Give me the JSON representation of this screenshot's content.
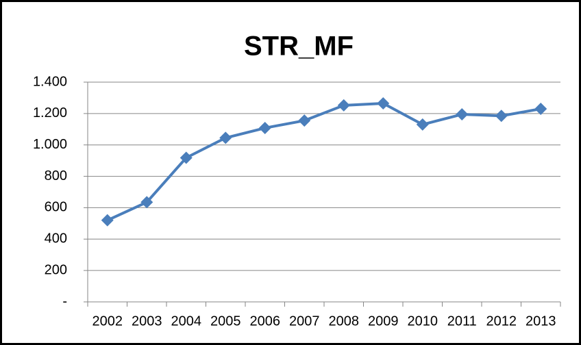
{
  "chart_data": {
    "type": "line",
    "title": "STR_MF",
    "categories": [
      "2002",
      "2003",
      "2004",
      "2005",
      "2006",
      "2007",
      "2008",
      "2009",
      "2010",
      "2011",
      "2012",
      "2013"
    ],
    "values": [
      520,
      635,
      918,
      1045,
      1108,
      1155,
      1252,
      1265,
      1130,
      1195,
      1185,
      1230
    ],
    "color": "#4a7ebb",
    "ylim": [
      0,
      1400
    ],
    "yticks": [
      {
        "value": 0,
        "label": "-"
      },
      200,
      400,
      600,
      800,
      {
        "value": 1000,
        "label": "1.000"
      },
      {
        "value": 1200,
        "label": "1.200"
      },
      {
        "value": 1400,
        "label": "1.400"
      }
    ],
    "grid": true
  }
}
